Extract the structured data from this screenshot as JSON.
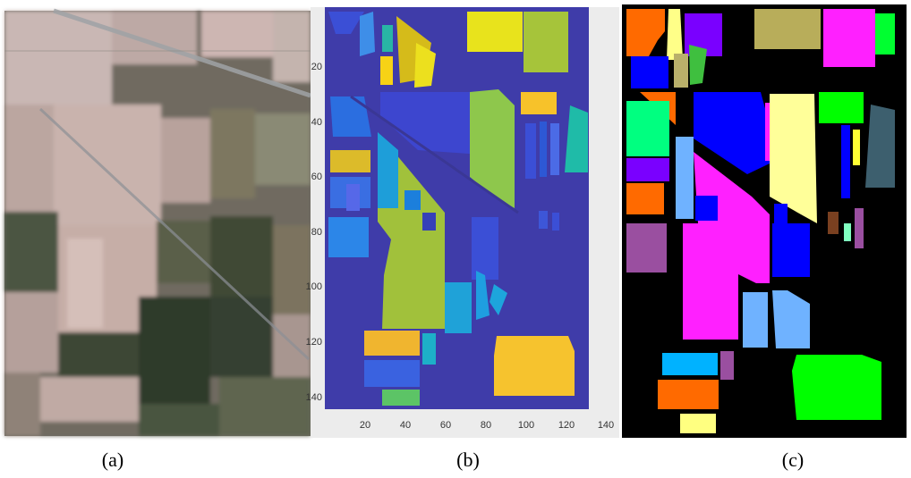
{
  "captions": {
    "a": "(a)",
    "b": "(b)",
    "c": "(c)"
  },
  "panel_b": {
    "x_ticks": [
      "20",
      "40",
      "60",
      "80",
      "100",
      "120",
      "140"
    ],
    "y_ticks": [
      "20",
      "40",
      "60",
      "80",
      "100",
      "120",
      "140"
    ]
  }
}
